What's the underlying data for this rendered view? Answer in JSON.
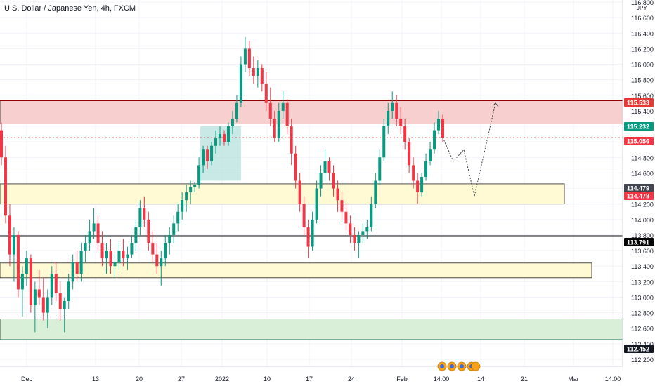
{
  "header": {
    "title": "U.S. Dollar / Japanese Yen, 4h, FXCM"
  },
  "axis": {
    "currency": "JPY"
  },
  "chart_data": {
    "type": "candlestick",
    "title": "U.S. Dollar / Japanese Yen, 4h, FXCM",
    "ylim": [
      112.2,
      116.8
    ],
    "y_ticks": [
      "112.200",
      "112.400",
      "112.600",
      "112.800",
      "113.000",
      "113.200",
      "113.400",
      "113.600",
      "113.800",
      "114.000",
      "114.200",
      "114.400",
      "114.600",
      "114.800",
      "115.000",
      "115.200",
      "115.400",
      "115.600",
      "115.800",
      "116.000",
      "116.200",
      "116.400",
      "116.600",
      "116.800"
    ],
    "x_ticks": [
      "Dec",
      "13",
      "20",
      "27",
      "2022",
      "10",
      "17",
      "24",
      "Feb",
      "14:00",
      "14",
      "21",
      "Mar",
      "14:00"
    ],
    "price_labels": [
      {
        "value": 115.533,
        "text": "115.533",
        "color": "#e53935"
      },
      {
        "value": 115.232,
        "text": "115.232",
        "color": "#089981"
      },
      {
        "value": 115.056,
        "text": "115.056",
        "color": "#f23645"
      },
      {
        "value": 114.479,
        "text": "114.479",
        "color": "#434651"
      },
      {
        "value": 114.478,
        "text": "114.478",
        "color": "#f23645"
      },
      {
        "value": 113.791,
        "text": "113.791",
        "color": "#000000"
      },
      {
        "value": 112.452,
        "text": "112.452",
        "color": "#131722"
      }
    ],
    "zones": [
      {
        "name": "resistance",
        "y1": 115.533,
        "y2": 115.232,
        "color": "#f7cfcf"
      },
      {
        "name": "support-1",
        "y1": 114.46,
        "y2": 114.2,
        "color": "#fff9d4"
      },
      {
        "name": "support-2",
        "y1": 113.44,
        "y2": 113.25,
        "color": "#fff9d4"
      },
      {
        "name": "demand",
        "y1": 112.72,
        "y2": 112.452,
        "color": "#d9efd8"
      }
    ],
    "levels": [
      115.533,
      115.232,
      113.791,
      112.72,
      112.452
    ],
    "ohlc": [
      [
        115.15,
        115.25,
        114.7,
        114.8
      ],
      [
        114.8,
        114.95,
        113.95,
        114.05
      ],
      [
        114.05,
        114.2,
        113.4,
        113.55
      ],
      [
        113.55,
        113.9,
        113.2,
        113.8
      ],
      [
        113.8,
        113.85,
        113.0,
        113.1
      ],
      [
        113.1,
        113.4,
        112.75,
        113.3
      ],
      [
        113.3,
        113.6,
        113.15,
        113.5
      ],
      [
        113.5,
        113.55,
        112.8,
        112.9
      ],
      [
        112.9,
        113.2,
        112.55,
        113.1
      ],
      [
        113.1,
        113.35,
        112.9,
        113.0
      ],
      [
        113.0,
        113.25,
        112.7,
        112.8
      ],
      [
        112.8,
        113.1,
        112.6,
        113.0
      ],
      [
        113.0,
        113.4,
        112.9,
        113.3
      ],
      [
        113.3,
        113.45,
        112.95,
        113.05
      ],
      [
        113.05,
        113.2,
        112.7,
        112.85
      ],
      [
        112.85,
        113.0,
        112.55,
        112.95
      ],
      [
        112.95,
        113.3,
        112.85,
        113.2
      ],
      [
        113.2,
        113.55,
        113.1,
        113.45
      ],
      [
        113.45,
        113.6,
        113.2,
        113.3
      ],
      [
        113.3,
        113.7,
        113.2,
        113.6
      ],
      [
        113.6,
        113.8,
        113.45,
        113.7
      ],
      [
        113.7,
        114.0,
        113.6,
        113.85
      ],
      [
        113.85,
        114.15,
        113.75,
        113.95
      ],
      [
        113.95,
        114.05,
        113.6,
        113.7
      ],
      [
        113.7,
        113.85,
        113.4,
        113.5
      ],
      [
        113.5,
        113.7,
        113.3,
        113.6
      ],
      [
        113.6,
        113.75,
        113.3,
        113.4
      ],
      [
        113.4,
        113.55,
        113.25,
        113.45
      ],
      [
        113.45,
        113.7,
        113.35,
        113.6
      ],
      [
        113.6,
        113.75,
        113.4,
        113.5
      ],
      [
        113.5,
        113.65,
        113.35,
        113.55
      ],
      [
        113.55,
        113.8,
        113.5,
        113.7
      ],
      [
        113.7,
        114.0,
        113.6,
        113.9
      ],
      [
        113.9,
        114.25,
        113.8,
        114.15
      ],
      [
        114.15,
        114.3,
        113.9,
        114.0
      ],
      [
        114.0,
        114.1,
        113.6,
        113.7
      ],
      [
        113.7,
        113.85,
        113.45,
        113.55
      ],
      [
        113.55,
        113.7,
        113.3,
        113.4
      ],
      [
        113.4,
        113.6,
        113.15,
        113.5
      ],
      [
        113.5,
        113.8,
        113.4,
        113.7
      ],
      [
        113.7,
        113.9,
        113.55,
        113.8
      ],
      [
        113.8,
        114.05,
        113.7,
        113.95
      ],
      [
        113.95,
        114.2,
        113.85,
        114.1
      ],
      [
        114.1,
        114.35,
        114.0,
        114.25
      ],
      [
        114.25,
        114.45,
        114.1,
        114.35
      ],
      [
        114.35,
        114.5,
        114.2,
        114.42
      ],
      [
        114.42,
        114.48,
        114.35,
        114.45
      ],
      [
        114.45,
        114.8,
        114.4,
        114.7
      ],
      [
        114.7,
        114.95,
        114.6,
        114.9
      ],
      [
        114.9,
        114.95,
        114.65,
        114.75
      ],
      [
        114.75,
        115.0,
        114.7,
        114.95
      ],
      [
        114.95,
        115.15,
        114.85,
        115.05
      ],
      [
        115.05,
        115.2,
        114.95,
        115.1
      ],
      [
        115.1,
        115.15,
        114.95,
        115.0
      ],
      [
        115.0,
        115.25,
        114.95,
        115.2
      ],
      [
        115.2,
        115.4,
        115.1,
        115.3
      ],
      [
        115.3,
        115.6,
        115.25,
        115.5
      ],
      [
        115.5,
        116.1,
        115.45,
        116.0
      ],
      [
        116.0,
        116.35,
        115.9,
        116.2
      ],
      [
        116.2,
        116.3,
        115.85,
        115.95
      ],
      [
        115.95,
        116.1,
        115.75,
        115.85
      ],
      [
        115.85,
        116.05,
        115.7,
        115.95
      ],
      [
        115.95,
        116.0,
        115.65,
        115.75
      ],
      [
        115.75,
        115.9,
        115.4,
        115.5
      ],
      [
        115.5,
        115.7,
        115.2,
        115.3
      ],
      [
        115.3,
        115.4,
        115.0,
        115.05
      ],
      [
        115.05,
        115.5,
        115.0,
        115.4
      ],
      [
        115.4,
        115.65,
        115.3,
        115.5
      ],
      [
        115.5,
        115.55,
        115.1,
        115.2
      ],
      [
        115.2,
        115.3,
        114.7,
        114.85
      ],
      [
        114.85,
        114.95,
        114.4,
        114.5
      ],
      [
        114.5,
        114.6,
        114.1,
        114.2
      ],
      [
        114.2,
        114.3,
        113.8,
        113.9
      ],
      [
        113.9,
        114.0,
        113.5,
        113.65
      ],
      [
        113.65,
        114.1,
        113.6,
        114.0
      ],
      [
        114.0,
        114.5,
        113.95,
        114.4
      ],
      [
        114.4,
        114.7,
        114.3,
        114.6
      ],
      [
        114.6,
        114.9,
        114.5,
        114.75
      ],
      [
        114.75,
        114.8,
        114.5,
        114.6
      ],
      [
        114.6,
        114.7,
        114.3,
        114.4
      ],
      [
        114.4,
        114.5,
        114.1,
        114.25
      ],
      [
        114.25,
        114.35,
        114.0,
        114.1
      ],
      [
        114.1,
        114.2,
        113.85,
        113.95
      ],
      [
        113.95,
        114.05,
        113.7,
        113.8
      ],
      [
        113.8,
        113.9,
        113.6,
        113.7
      ],
      [
        113.7,
        113.85,
        113.5,
        113.8
      ],
      [
        113.8,
        113.95,
        113.7,
        113.85
      ],
      [
        113.85,
        114.0,
        113.75,
        113.9
      ],
      [
        113.9,
        114.3,
        113.85,
        114.2
      ],
      [
        114.2,
        114.6,
        114.15,
        114.5
      ],
      [
        114.5,
        114.9,
        114.45,
        114.8
      ],
      [
        114.8,
        115.3,
        114.75,
        115.2
      ],
      [
        115.2,
        115.5,
        115.1,
        115.4
      ],
      [
        115.4,
        115.65,
        115.3,
        115.5
      ],
      [
        115.5,
        115.6,
        115.2,
        115.3
      ],
      [
        115.3,
        115.45,
        115.1,
        115.2
      ],
      [
        115.2,
        115.3,
        114.9,
        115.0
      ],
      [
        115.0,
        115.05,
        114.6,
        114.7
      ],
      [
        114.7,
        114.8,
        114.4,
        114.5
      ],
      [
        114.5,
        114.6,
        114.2,
        114.35
      ],
      [
        114.35,
        114.6,
        114.3,
        114.55
      ],
      [
        114.55,
        114.85,
        114.5,
        114.75
      ],
      [
        114.75,
        115.0,
        114.7,
        114.9
      ],
      [
        114.9,
        115.25,
        114.85,
        115.15
      ],
      [
        115.15,
        115.4,
        115.1,
        115.3
      ],
      [
        115.3,
        115.35,
        115.0,
        115.056
      ]
    ],
    "projection": [
      [
        115.056,
        0
      ],
      [
        114.75,
        1
      ],
      [
        114.9,
        2
      ],
      [
        114.3,
        3
      ],
      [
        115.5,
        5
      ]
    ],
    "highlight_box": {
      "from": 47,
      "to": 56,
      "y1": 115.2,
      "y2": 114.5,
      "color": "#b2dfdb"
    }
  }
}
